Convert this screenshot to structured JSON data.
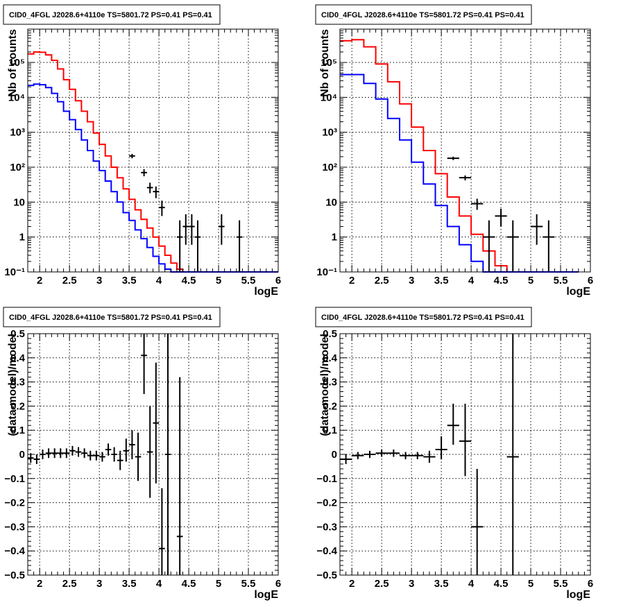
{
  "chart_data": [
    {
      "type": "line",
      "title": "CID0_4FGL J2028.6+4110e TS=5801.72 PS=0.41 PS=0.41",
      "xlabel": "logE",
      "ylabel": "Nb of counts",
      "xlim": [
        1.8,
        6.0
      ],
      "ylim": [
        0.1,
        900000
      ],
      "yscale": "log",
      "grid": true,
      "xticks": [
        "2",
        "2.5",
        "3",
        "3.5",
        "4",
        "4.5",
        "5",
        "5.5",
        "6"
      ],
      "yticks": [
        {
          "v": 0.1,
          "label": "10⁻¹"
        },
        {
          "v": 1,
          "label": "1"
        },
        {
          "v": 10,
          "label": "10"
        },
        {
          "v": 100,
          "label": "10²"
        },
        {
          "v": 1000,
          "label": "10³"
        },
        {
          "v": 10000,
          "label": "10⁴"
        },
        {
          "v": 100000,
          "label": "10⁵"
        }
      ],
      "edges": [
        1.8,
        1.9,
        2.0,
        2.1,
        2.2,
        2.3,
        2.4,
        2.5,
        2.6,
        2.7,
        2.8,
        2.9,
        3.0,
        3.1,
        3.2,
        3.3,
        3.4,
        3.5,
        3.6,
        3.7,
        3.8,
        3.9,
        4.0,
        4.1,
        4.2,
        4.3,
        4.4,
        4.5,
        4.6,
        4.7,
        4.8,
        4.9,
        5.0,
        5.1,
        5.2,
        5.3,
        5.4,
        5.5,
        5.6,
        5.7,
        5.8,
        5.9,
        6.0
      ],
      "series": [
        {
          "color": "#ff0000",
          "values": [
            175000,
            200000,
            195000,
            165000,
            115000,
            65000,
            32000,
            17000,
            8000,
            4000,
            2000,
            950,
            450,
            210,
            100,
            50,
            24,
            12,
            6,
            3.2,
            1.8,
            1.0,
            0.55,
            0.3,
            0.18,
            0.12,
            0.1,
            0.1,
            0.1,
            0.1,
            0.1,
            0.1,
            0.1,
            0.1,
            0.1,
            0.1,
            0.1,
            0.1,
            0.1,
            0.1,
            0.1,
            0.1
          ]
        },
        {
          "color": "#0000ff",
          "values": [
            22000,
            24000,
            23000,
            19000,
            13000,
            7500,
            4000,
            2300,
            1200,
            600,
            300,
            150,
            80,
            40,
            20,
            10,
            5,
            3,
            1.6,
            0.9,
            0.5,
            0.28,
            0.17,
            0.12,
            0.1,
            0.1,
            0.1,
            0.1,
            0.1,
            0.1,
            0.1,
            0.1,
            0.1,
            0.1,
            0.1,
            0.1,
            0.1,
            0.1,
            0.1,
            0.1,
            0.1,
            0.1
          ]
        }
      ],
      "points": [
        {
          "x": 3.55,
          "y": 210,
          "xerr": 0.05,
          "ylo": 180,
          "yhi": 240
        },
        {
          "x": 3.75,
          "y": 70,
          "xerr": 0.05,
          "ylo": 55,
          "yhi": 88
        },
        {
          "x": 3.85,
          "y": 26,
          "xerr": 0.05,
          "ylo": 18,
          "yhi": 36
        },
        {
          "x": 3.95,
          "y": 20,
          "xerr": 0.05,
          "ylo": 13,
          "yhi": 28
        },
        {
          "x": 4.05,
          "y": 7,
          "xerr": 0.05,
          "ylo": 4,
          "yhi": 11
        },
        {
          "x": 4.35,
          "y": 1,
          "xerr": 0.05,
          "ylo": 0.1,
          "yhi": 3
        },
        {
          "x": 4.45,
          "y": 2,
          "xerr": 0.05,
          "ylo": 0.6,
          "yhi": 4.5
        },
        {
          "x": 4.55,
          "y": 2,
          "xerr": 0.05,
          "ylo": 0.6,
          "yhi": 4.5
        },
        {
          "x": 4.65,
          "y": 1,
          "xerr": 0.05,
          "ylo": 0.1,
          "yhi": 3
        },
        {
          "x": 5.05,
          "y": 2,
          "xerr": 0.05,
          "ylo": 0.6,
          "yhi": 4.5
        },
        {
          "x": 5.35,
          "y": 1,
          "xerr": 0.05,
          "ylo": 0.1,
          "yhi": 3
        }
      ]
    },
    {
      "type": "line",
      "title": "CID0_4FGL J2028.6+4110e TS=5801.72 PS=0.41 PS=0.41",
      "xlabel": "logE",
      "ylabel": "Nb of counts",
      "xlim": [
        1.8,
        6.0
      ],
      "ylim": [
        0.1,
        900000
      ],
      "yscale": "log",
      "grid": true,
      "xticks": [
        "2",
        "2.5",
        "3",
        "3.5",
        "4",
        "4.5",
        "5",
        "5.5",
        "6"
      ],
      "yticks": [
        {
          "v": 0.1,
          "label": "10⁻¹"
        },
        {
          "v": 1,
          "label": "1"
        },
        {
          "v": 10,
          "label": "10"
        },
        {
          "v": 100,
          "label": "10²"
        },
        {
          "v": 1000,
          "label": "10³"
        },
        {
          "v": 10000,
          "label": "10⁴"
        },
        {
          "v": 100000,
          "label": "10⁵"
        }
      ],
      "edges": [
        1.8,
        2.0,
        2.2,
        2.4,
        2.6,
        2.8,
        3.0,
        3.2,
        3.4,
        3.6,
        3.8,
        4.0,
        4.2,
        4.4,
        4.6,
        4.8,
        5.0,
        5.2,
        5.4,
        5.6,
        5.8,
        6.0
      ],
      "series": [
        {
          "color": "#ff0000",
          "values": [
            420000,
            450000,
            280000,
            90000,
            28000,
            6500,
            1400,
            300,
            65,
            14,
            4,
            1.2,
            0.4,
            0.15,
            0.1,
            0.1,
            0.1,
            0.1,
            0.1,
            0.1
          ]
        },
        {
          "color": "#0000ff",
          "values": [
            45000,
            45000,
            25000,
            9000,
            2500,
            600,
            140,
            33,
            8,
            2,
            0.6,
            0.2,
            0.1,
            0.1,
            0.1,
            0.1,
            0.1,
            0.1,
            0.1,
            0.1
          ]
        }
      ],
      "points": [
        {
          "x": 3.7,
          "y": 180,
          "xerr": 0.1,
          "ylo": 160,
          "yhi": 200
        },
        {
          "x": 3.9,
          "y": 50,
          "xerr": 0.1,
          "ylo": 42,
          "yhi": 58
        },
        {
          "x": 4.1,
          "y": 9,
          "xerr": 0.1,
          "ylo": 6,
          "yhi": 12.5
        },
        {
          "x": 4.3,
          "y": 1,
          "xerr": 0.1,
          "ylo": 0.1,
          "yhi": 3
        },
        {
          "x": 4.5,
          "y": 4,
          "xerr": 0.1,
          "ylo": 2,
          "yhi": 6.5
        },
        {
          "x": 4.7,
          "y": 1,
          "xerr": 0.1,
          "ylo": 0.1,
          "yhi": 3
        },
        {
          "x": 5.1,
          "y": 2,
          "xerr": 0.1,
          "ylo": 0.6,
          "yhi": 4.5
        },
        {
          "x": 5.3,
          "y": 1,
          "xerr": 0.1,
          "ylo": 0.1,
          "yhi": 3
        }
      ]
    },
    {
      "type": "scatter",
      "title": "CID0_4FGL J2028.6+4110e TS=5801.72 PS=0.41 PS=0.41",
      "xlabel": "logE",
      "ylabel": "(data-model)/model",
      "xlim": [
        1.8,
        6.0
      ],
      "ylim": [
        -0.5,
        0.5
      ],
      "yscale": "linear",
      "grid": true,
      "xticks": [
        "2",
        "2.5",
        "3",
        "3.5",
        "4",
        "4.5",
        "5",
        "5.5",
        "6"
      ],
      "yticks": [
        {
          "v": -0.5,
          "label": "−0.5"
        },
        {
          "v": -0.4,
          "label": "−0.4"
        },
        {
          "v": -0.3,
          "label": "−0.3"
        },
        {
          "v": -0.2,
          "label": "−0.2"
        },
        {
          "v": -0.1,
          "label": "−0.1"
        },
        {
          "v": 0,
          "label": "0"
        },
        {
          "v": 0.1,
          "label": "0.1"
        },
        {
          "v": 0.2,
          "label": "0.2"
        },
        {
          "v": 0.3,
          "label": "0.3"
        },
        {
          "v": 0.4,
          "label": "0.4"
        },
        {
          "v": 0.5,
          "label": "0.5"
        }
      ],
      "points": [
        {
          "x": 1.85,
          "y": -0.015,
          "xerr": 0.05,
          "ylo": -0.035,
          "yhi": 0.005
        },
        {
          "x": 1.95,
          "y": -0.02,
          "xerr": 0.05,
          "ylo": -0.04,
          "yhi": 0.0
        },
        {
          "x": 2.05,
          "y": 0.0,
          "xerr": 0.05,
          "ylo": -0.02,
          "yhi": 0.02
        },
        {
          "x": 2.15,
          "y": 0.005,
          "xerr": 0.05,
          "ylo": -0.015,
          "yhi": 0.025
        },
        {
          "x": 2.25,
          "y": 0.005,
          "xerr": 0.05,
          "ylo": -0.015,
          "yhi": 0.025
        },
        {
          "x": 2.35,
          "y": 0.005,
          "xerr": 0.05,
          "ylo": -0.015,
          "yhi": 0.025
        },
        {
          "x": 2.45,
          "y": 0.005,
          "xerr": 0.05,
          "ylo": -0.015,
          "yhi": 0.025
        },
        {
          "x": 2.55,
          "y": 0.015,
          "xerr": 0.05,
          "ylo": -0.005,
          "yhi": 0.035
        },
        {
          "x": 2.65,
          "y": 0.01,
          "xerr": 0.05,
          "ylo": -0.01,
          "yhi": 0.03
        },
        {
          "x": 2.75,
          "y": 0.005,
          "xerr": 0.05,
          "ylo": -0.015,
          "yhi": 0.025
        },
        {
          "x": 2.85,
          "y": -0.005,
          "xerr": 0.05,
          "ylo": -0.025,
          "yhi": 0.015
        },
        {
          "x": 2.95,
          "y": -0.005,
          "xerr": 0.05,
          "ylo": -0.025,
          "yhi": 0.015
        },
        {
          "x": 3.05,
          "y": -0.01,
          "xerr": 0.05,
          "ylo": -0.03,
          "yhi": 0.01
        },
        {
          "x": 3.15,
          "y": 0.02,
          "xerr": 0.05,
          "ylo": -0.005,
          "yhi": 0.045
        },
        {
          "x": 3.25,
          "y": 0.0,
          "xerr": 0.05,
          "ylo": -0.03,
          "yhi": 0.03
        },
        {
          "x": 3.35,
          "y": -0.025,
          "xerr": 0.05,
          "ylo": -0.065,
          "yhi": 0.015
        },
        {
          "x": 3.45,
          "y": 0.015,
          "xerr": 0.05,
          "ylo": -0.03,
          "yhi": 0.065
        },
        {
          "x": 3.55,
          "y": 0.04,
          "xerr": 0.05,
          "ylo": -0.02,
          "yhi": 0.1
        },
        {
          "x": 3.65,
          "y": -0.01,
          "xerr": 0.05,
          "ylo": -0.11,
          "yhi": 0.09
        },
        {
          "x": 3.75,
          "y": 0.41,
          "xerr": 0.05,
          "ylo": 0.25,
          "yhi": 0.5
        },
        {
          "x": 3.85,
          "y": 0.01,
          "xerr": 0.05,
          "ylo": -0.18,
          "yhi": 0.2
        },
        {
          "x": 3.95,
          "y": 0.13,
          "xerr": 0.05,
          "ylo": -0.12,
          "yhi": 0.38
        },
        {
          "x": 4.05,
          "y": -0.39,
          "xerr": 0.05,
          "ylo": -0.5,
          "yhi": -0.14
        },
        {
          "x": 4.15,
          "y": 0.0,
          "xerr": 0.05,
          "ylo": -0.5,
          "yhi": 0.5
        },
        {
          "x": 4.35,
          "y": -0.34,
          "xerr": 0.05,
          "ylo": -0.5,
          "yhi": 0.32
        }
      ]
    },
    {
      "type": "scatter",
      "title": "CID0_4FGL J2028.6+4110e TS=5801.72 PS=0.41 PS=0.41",
      "xlabel": "logE",
      "ylabel": "(data-model)/model",
      "xlim": [
        1.8,
        6.0
      ],
      "ylim": [
        -0.5,
        0.5
      ],
      "yscale": "linear",
      "grid": true,
      "xticks": [
        "2",
        "2.5",
        "3",
        "3.5",
        "4",
        "4.5",
        "5",
        "5.5",
        "6"
      ],
      "yticks": [
        {
          "v": -0.5,
          "label": "−0.5"
        },
        {
          "v": -0.4,
          "label": "−0.4"
        },
        {
          "v": -0.3,
          "label": "−0.3"
        },
        {
          "v": -0.2,
          "label": "−0.2"
        },
        {
          "v": -0.1,
          "label": "−0.1"
        },
        {
          "v": 0,
          "label": "0"
        },
        {
          "v": 0.1,
          "label": "0.1"
        },
        {
          "v": 0.2,
          "label": "0.2"
        },
        {
          "v": 0.3,
          "label": "0.3"
        },
        {
          "v": 0.4,
          "label": "0.4"
        },
        {
          "v": 0.5,
          "label": "0.5"
        }
      ],
      "points": [
        {
          "x": 1.9,
          "y": -0.02,
          "xerr": 0.1,
          "ylo": -0.04,
          "yhi": 0.0
        },
        {
          "x": 2.1,
          "y": -0.005,
          "xerr": 0.1,
          "ylo": -0.02,
          "yhi": 0.01
        },
        {
          "x": 2.3,
          "y": 0.0,
          "xerr": 0.1,
          "ylo": -0.015,
          "yhi": 0.015
        },
        {
          "x": 2.5,
          "y": 0.005,
          "xerr": 0.1,
          "ylo": -0.01,
          "yhi": 0.02
        },
        {
          "x": 2.7,
          "y": 0.005,
          "xerr": 0.1,
          "ylo": -0.01,
          "yhi": 0.02
        },
        {
          "x": 2.9,
          "y": -0.005,
          "xerr": 0.1,
          "ylo": -0.02,
          "yhi": 0.01
        },
        {
          "x": 3.1,
          "y": -0.005,
          "xerr": 0.1,
          "ylo": -0.02,
          "yhi": 0.01
        },
        {
          "x": 3.3,
          "y": -0.01,
          "xerr": 0.1,
          "ylo": -0.035,
          "yhi": 0.015
        },
        {
          "x": 3.5,
          "y": 0.02,
          "xerr": 0.1,
          "ylo": -0.02,
          "yhi": 0.075
        },
        {
          "x": 3.7,
          "y": 0.12,
          "xerr": 0.1,
          "ylo": 0.04,
          "yhi": 0.21
        },
        {
          "x": 3.9,
          "y": 0.055,
          "xerr": 0.1,
          "ylo": -0.09,
          "yhi": 0.21
        },
        {
          "x": 4.1,
          "y": -0.3,
          "xerr": 0.1,
          "ylo": -0.5,
          "yhi": -0.06
        },
        {
          "x": 4.7,
          "y": -0.01,
          "xerr": 0.1,
          "ylo": -0.5,
          "yhi": 0.5
        }
      ]
    }
  ]
}
